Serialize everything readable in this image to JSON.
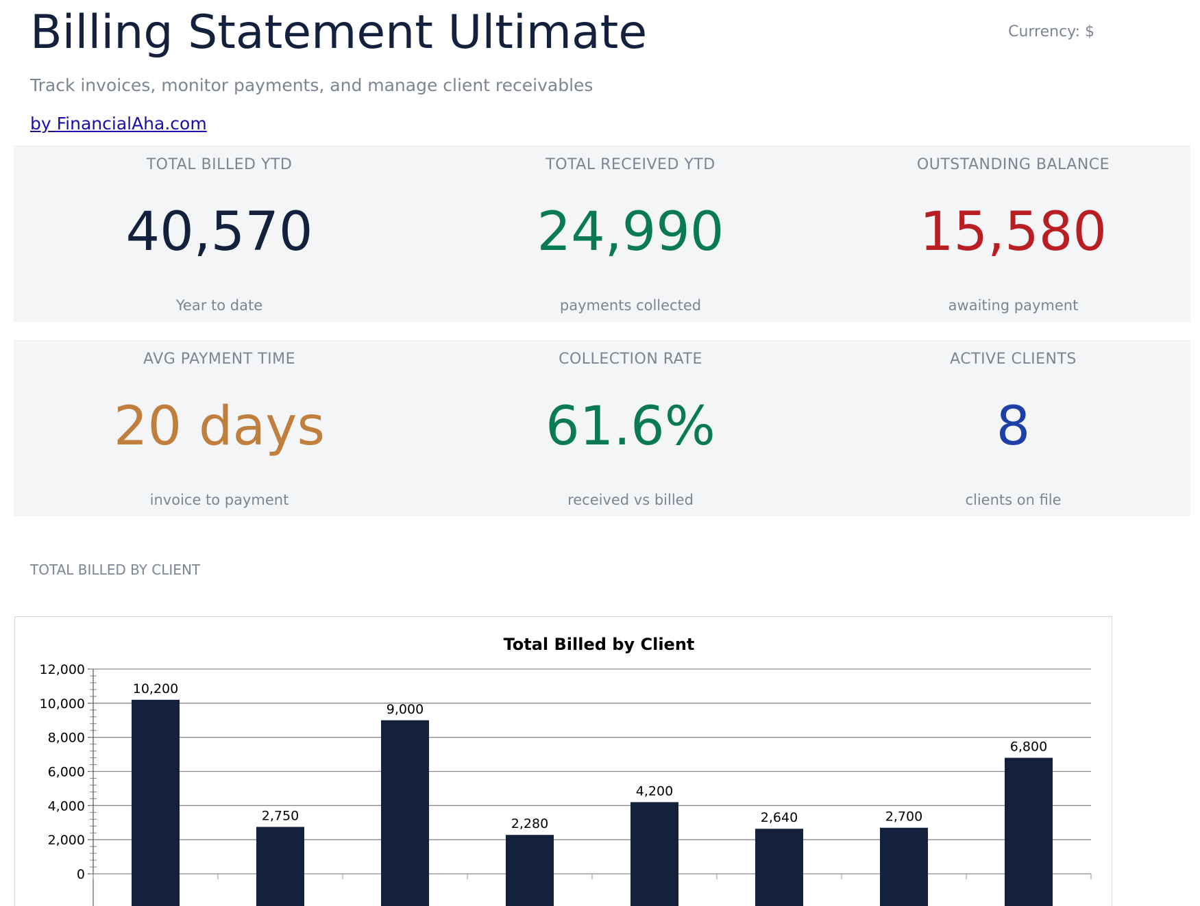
{
  "header": {
    "title": "Billing Statement Ultimate",
    "currency": "Currency: $",
    "subtitle": "Track invoices, monitor payments, and manage client receivables",
    "byline": "by FinancialAha.com"
  },
  "colors": {
    "navy": "#14213d",
    "green": "#0a7a55",
    "red": "#b81e22",
    "orange": "#c17f3e",
    "blue": "#1f3fa8",
    "bar": "#14213d"
  },
  "kpis_row1": [
    {
      "label": "TOTAL BILLED YTD",
      "value": "40,570",
      "sub": "Year to date",
      "color": "#14213d"
    },
    {
      "label": "TOTAL RECEIVED YTD",
      "value": "24,990",
      "sub": "payments collected",
      "color": "#0a7a55"
    },
    {
      "label": "OUTSTANDING BALANCE",
      "value": "15,580",
      "sub": "awaiting payment",
      "color": "#b81e22"
    }
  ],
  "kpis_row2": [
    {
      "label": "AVG PAYMENT TIME",
      "value": "20 days",
      "sub": "invoice to payment",
      "color": "#c17f3e"
    },
    {
      "label": "COLLECTION RATE",
      "value": "61.6%",
      "sub": "received vs billed",
      "color": "#0a7a55"
    },
    {
      "label": "ACTIVE CLIENTS",
      "value": "8",
      "sub": "clients on file",
      "color": "#1f3fa8"
    }
  ],
  "section": {
    "label": "TOTAL BILLED BY CLIENT"
  },
  "chart_data": {
    "type": "bar",
    "title": "Total Billed by Client",
    "xlabel": "",
    "ylabel": "",
    "values": [
      10200,
      2750,
      9000,
      2280,
      4200,
      2640,
      2700,
      6800
    ],
    "value_labels": [
      "10,200",
      "2,750",
      "9,000",
      "2,280",
      "4,200",
      "2,640",
      "2,700",
      "6,800"
    ],
    "ylim": [
      0,
      12000
    ],
    "yticks": [
      0,
      2000,
      4000,
      6000,
      8000,
      10000,
      12000
    ],
    "ytick_labels": [
      "0",
      "2,000",
      "4,000",
      "6,000",
      "8,000",
      "10,000",
      "12,000"
    ],
    "grid": true,
    "legend": "none"
  }
}
